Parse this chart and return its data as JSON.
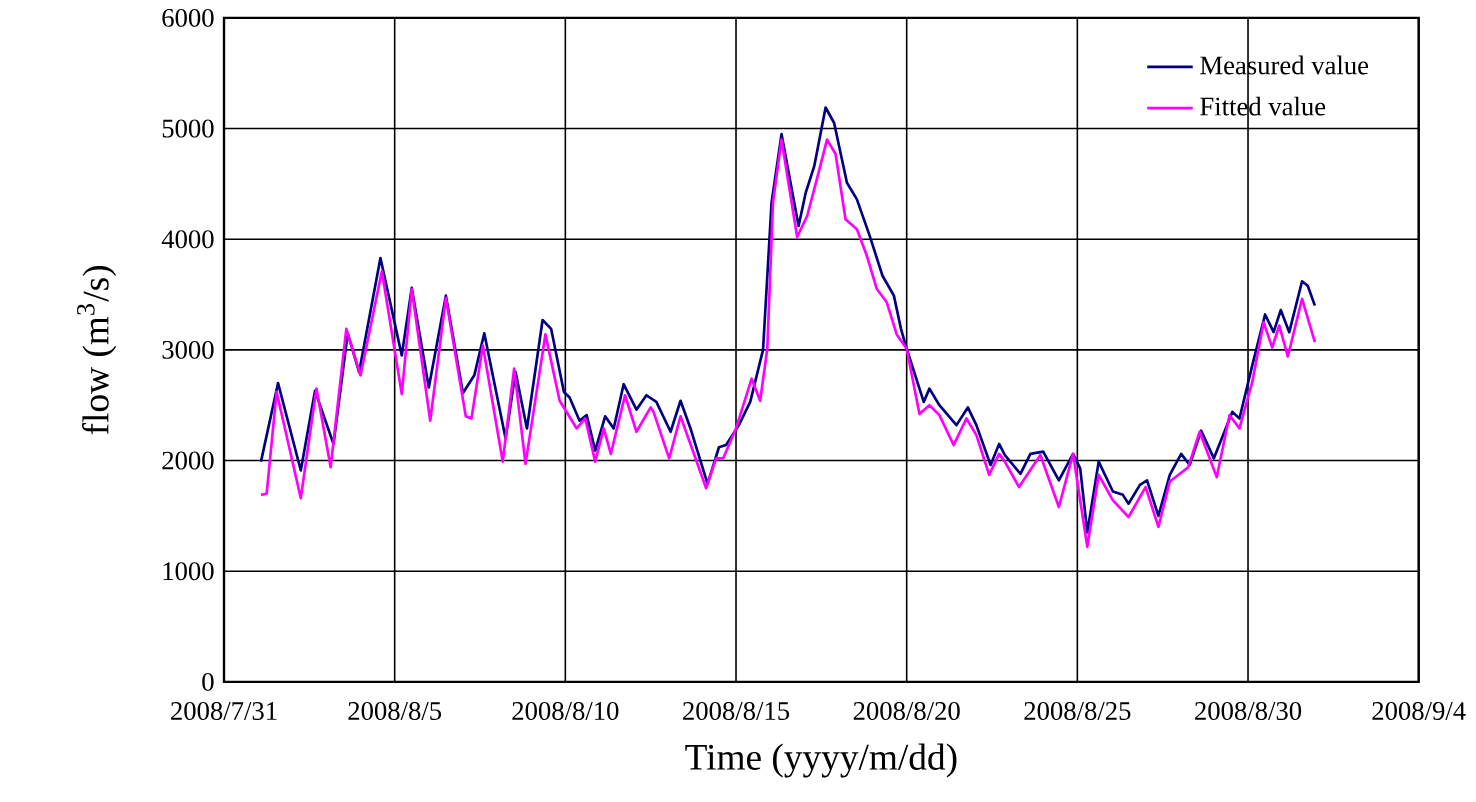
{
  "chart_data": {
    "type": "line",
    "xlabel": "Time (yyyy/m/dd)",
    "ylabel": "flow (m$^{3}$/s)",
    "xlim": [
      "2008-07-31",
      "2008-09-04"
    ],
    "xticks": [
      {
        "value": "2008-07-31",
        "label": "2008/7/31"
      },
      {
        "value": "2008-08-05",
        "label": "2008/8/5"
      },
      {
        "value": "2008-08-10",
        "label": "2008/8/10"
      },
      {
        "value": "2008-08-15",
        "label": "2008/8/15"
      },
      {
        "value": "2008-08-20",
        "label": "2008/8/20"
      },
      {
        "value": "2008-08-25",
        "label": "2008/8/25"
      },
      {
        "value": "2008-08-30",
        "label": "2008/8/30"
      },
      {
        "value": "2008-09-04",
        "label": "2008/9/4"
      }
    ],
    "ylim": [
      0,
      6000
    ],
    "yticks": [
      0,
      1000,
      2000,
      3000,
      4000,
      5000,
      6000
    ],
    "grid": true,
    "legend": "top right",
    "line_style": "solid",
    "series": [
      {
        "name": "Measured value",
        "color": "#000080",
        "x": [
          "2008-08-01T02:00",
          "2008-08-01T14:00",
          "2008-08-02T06:00",
          "2008-08-02T16:00",
          "2008-08-03T05:00",
          "2008-08-03T15:00",
          "2008-08-03T23:00",
          "2008-08-04T14:00",
          "2008-08-05T05:00",
          "2008-08-05T12:00",
          "2008-08-06T00:00",
          "2008-08-06T12:00",
          "2008-08-07T00:00",
          "2008-08-07T08:00",
          "2008-08-07T15:00",
          "2008-08-08T06:00",
          "2008-08-08T13:00",
          "2008-08-08T21:00",
          "2008-08-09T08:00",
          "2008-08-09T14:00",
          "2008-08-09T23:00",
          "2008-08-10T03:00",
          "2008-08-10T10:00",
          "2008-08-10T15:00",
          "2008-08-10T21:00",
          "2008-08-11T04:00",
          "2008-08-11T10:00",
          "2008-08-11T17:00",
          "2008-08-12T02:00",
          "2008-08-12T09:00",
          "2008-08-12T16:00",
          "2008-08-13T02:00",
          "2008-08-13T09:00",
          "2008-08-13T16:00",
          "2008-08-14T04:00",
          "2008-08-14T12:00",
          "2008-08-14T17:00",
          "2008-08-15T02:00",
          "2008-08-15T10:00",
          "2008-08-15T19:00",
          "2008-08-16T01:00",
          "2008-08-16T08:00",
          "2008-08-16T20:00",
          "2008-08-17T01:00",
          "2008-08-17T07:00",
          "2008-08-17T15:00",
          "2008-08-17T21:00",
          "2008-08-18T06:00",
          "2008-08-18T13:00",
          "2008-08-18T22:00",
          "2008-08-19T07:00",
          "2008-08-19T15:00",
          "2008-08-19T20:00",
          "2008-08-20T00:00",
          "2008-08-20T12:00",
          "2008-08-20T16:00",
          "2008-08-20T23:00",
          "2008-08-21T11:00",
          "2008-08-21T19:00",
          "2008-08-22T01:00",
          "2008-08-22T11:00",
          "2008-08-22T17:00",
          "2008-08-22T21:00",
          "2008-08-23T08:00",
          "2008-08-23T15:00",
          "2008-08-24T00:00",
          "2008-08-24T11:00",
          "2008-08-24T21:00",
          "2008-08-25T02:00",
          "2008-08-25T07:00",
          "2008-08-25T15:00",
          "2008-08-26T01:00",
          "2008-08-26T08:00",
          "2008-08-26T12:00",
          "2008-08-26T20:00",
          "2008-08-27T01:00",
          "2008-08-27T09:00",
          "2008-08-27T17:00",
          "2008-08-28T01:00",
          "2008-08-28T07:00",
          "2008-08-28T15:00",
          "2008-08-29T00:00",
          "2008-08-29T13:00",
          "2008-08-29T18:00",
          "2008-08-30T03:00",
          "2008-08-30T12:00",
          "2008-08-30T18:00",
          "2008-08-30T23:00",
          "2008-08-31T05:00",
          "2008-08-31T14:00",
          "2008-08-31T18:00",
          "2008-08-31T23:00"
        ],
        "values": [
          1990,
          2700,
          1910,
          2630,
          2150,
          3150,
          2800,
          3830,
          2950,
          3560,
          2660,
          3490,
          2610,
          2770,
          3150,
          2200,
          2800,
          2290,
          3270,
          3190,
          2620,
          2570,
          2360,
          2410,
          2090,
          2400,
          2290,
          2690,
          2460,
          2590,
          2530,
          2260,
          2540,
          2290,
          1790,
          2120,
          2140,
          2320,
          2530,
          3000,
          4330,
          4950,
          4120,
          4420,
          4660,
          5190,
          5050,
          4510,
          4360,
          4030,
          3670,
          3490,
          3190,
          3010,
          2530,
          2650,
          2500,
          2320,
          2480,
          2320,
          1960,
          2150,
          2050,
          1880,
          2060,
          2080,
          1820,
          2060,
          1930,
          1350,
          1990,
          1720,
          1690,
          1610,
          1780,
          1820,
          1500,
          1870,
          2060,
          1960,
          2270,
          2020,
          2440,
          2380,
          2860,
          3320,
          3160,
          3360,
          3160,
          3620,
          3580,
          3400
        ]
      },
      {
        "name": "Fitted value",
        "color": "#ff00ff",
        "x": [
          "2008-08-01T02:00",
          "2008-08-01T06:00",
          "2008-08-01T13:00",
          "2008-08-02T06:00",
          "2008-08-02T17:00",
          "2008-08-03T03:00",
          "2008-08-03T14:00",
          "2008-08-04T00:00",
          "2008-08-04T15:00",
          "2008-08-05T05:00",
          "2008-08-05T12:00",
          "2008-08-06T01:00",
          "2008-08-06T12:00",
          "2008-08-07T02:00",
          "2008-08-07T06:00",
          "2008-08-07T14:00",
          "2008-08-08T04:00",
          "2008-08-08T12:00",
          "2008-08-08T20:00",
          "2008-08-09T10:00",
          "2008-08-09T20:00",
          "2008-08-10T08:00",
          "2008-08-10T14:00",
          "2008-08-10T21:00",
          "2008-08-11T03:00",
          "2008-08-11T08:00",
          "2008-08-11T18:00",
          "2008-08-12T02:00",
          "2008-08-12T12:00",
          "2008-08-12T14:00",
          "2008-08-13T01:00",
          "2008-08-13T09:00",
          "2008-08-14T03:00",
          "2008-08-14T10:00",
          "2008-08-14T15:00",
          "2008-08-15T00:00",
          "2008-08-15T11:00",
          "2008-08-15T17:00",
          "2008-08-15T22:00",
          "2008-08-16T02:00",
          "2008-08-16T08:00",
          "2008-08-16T19:00",
          "2008-08-17T02:00",
          "2008-08-17T07:00",
          "2008-08-17T16:00",
          "2008-08-17T22:00",
          "2008-08-18T05:00",
          "2008-08-18T13:00",
          "2008-08-18T20:00",
          "2008-08-19T03:00",
          "2008-08-19T10:00",
          "2008-08-19T17:00",
          "2008-08-20T00:00",
          "2008-08-20T09:00",
          "2008-08-20T16:00",
          "2008-08-20T23:00",
          "2008-08-21T09:00",
          "2008-08-21T18:00",
          "2008-08-22T01:00",
          "2008-08-22T10:00",
          "2008-08-22T17:00",
          "2008-08-22T21:00",
          "2008-08-23T07:00",
          "2008-08-23T22:00",
          "2008-08-24T11:00",
          "2008-08-24T21:00",
          "2008-08-25T07:00",
          "2008-08-25T15:00",
          "2008-08-26T01:00",
          "2008-08-26T12:00",
          "2008-08-27T00:00",
          "2008-08-27T09:00",
          "2008-08-27T17:00",
          "2008-08-28T06:00",
          "2008-08-28T14:00",
          "2008-08-29T02:00",
          "2008-08-29T11:00",
          "2008-08-29T18:00",
          "2008-08-30T03:00",
          "2008-08-30T11:00",
          "2008-08-30T17:00",
          "2008-08-30T22:00",
          "2008-08-31T04:00",
          "2008-08-31T14:00",
          "2008-08-31T23:00"
        ],
        "values": [
          1690,
          1700,
          2620,
          1660,
          2650,
          1940,
          3190,
          2770,
          3710,
          2600,
          3550,
          2360,
          3470,
          2400,
          2380,
          3040,
          1990,
          2830,
          1970,
          3140,
          2540,
          2290,
          2380,
          1990,
          2290,
          2060,
          2590,
          2260,
          2480,
          2440,
          2020,
          2400,
          1750,
          2020,
          2020,
          2290,
          2740,
          2540,
          3010,
          4330,
          4900,
          4020,
          4210,
          4450,
          4900,
          4770,
          4180,
          4090,
          3850,
          3550,
          3430,
          3140,
          3010,
          2420,
          2500,
          2410,
          2140,
          2380,
          2230,
          1870,
          2060,
          1990,
          1760,
          2050,
          1580,
          2060,
          1220,
          1870,
          1640,
          1490,
          1760,
          1400,
          1810,
          1940,
          2260,
          1850,
          2410,
          2290,
          2710,
          3250,
          3020,
          3220,
          2940,
          3460,
          3070
        ]
      }
    ]
  }
}
